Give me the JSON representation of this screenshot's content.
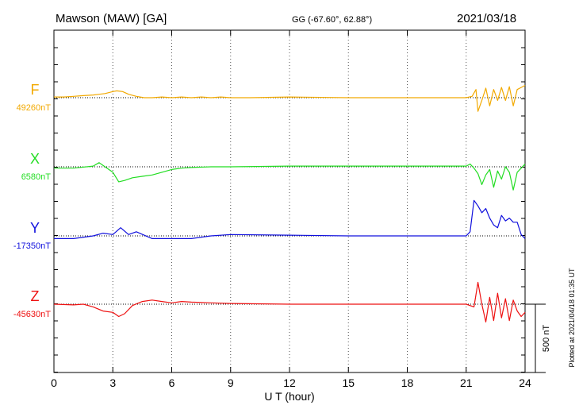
{
  "header": {
    "station": "Mawson (MAW)  [GA]",
    "coords": "GG (-67.60°,  62.88°)",
    "date": "2021/03/18"
  },
  "footer": {
    "plotted": "Plotted at 2021/04/18 01:35 UT"
  },
  "scale_bar": {
    "label": "500 nT",
    "value": 500
  },
  "chart_data": {
    "type": "line",
    "title": "Mawson (MAW)  [GA]",
    "xlabel": "U T (hour)",
    "xlim": [
      0,
      24
    ],
    "xticks": [
      0,
      3,
      6,
      9,
      12,
      15,
      18,
      21,
      24
    ],
    "xtick_labels": [
      "0",
      "3",
      "6",
      "9",
      "12",
      "15",
      "18",
      "21",
      "24"
    ],
    "grid": "vertical dotted lines every 3 hours",
    "y_scale_nT_per_division": 500,
    "series": [
      {
        "name": "F",
        "baseline_label": "49260nT",
        "color": "#f2a900",
        "x": [
          0,
          0.5,
          1,
          1.5,
          2,
          2.3,
          2.6,
          3,
          3.2,
          3.5,
          3.8,
          4.2,
          4.6,
          5,
          5.5,
          6,
          6.5,
          7,
          7.5,
          8,
          8.5,
          9,
          10,
          12,
          15,
          18,
          20,
          21,
          21.3,
          21.5,
          21.6,
          21.8,
          22,
          22.2,
          22.4,
          22.6,
          22.8,
          23,
          23.2,
          23.4,
          23.6,
          23.8,
          24
        ],
        "values": [
          5,
          5,
          10,
          15,
          20,
          25,
          30,
          45,
          50,
          45,
          25,
          10,
          0,
          0,
          5,
          0,
          5,
          0,
          5,
          0,
          5,
          0,
          0,
          5,
          0,
          0,
          0,
          0,
          10,
          60,
          -100,
          -20,
          70,
          -60,
          60,
          -20,
          75,
          -20,
          80,
          -60,
          60,
          75,
          90
        ]
      },
      {
        "name": "X",
        "baseline_label": "6580nT",
        "color": "#22dd22",
        "x": [
          0,
          1,
          2,
          2.3,
          2.6,
          3,
          3.3,
          3.6,
          4,
          4.5,
          5,
          5.5,
          6,
          6.5,
          7,
          8,
          9,
          12,
          15,
          18,
          21,
          21.2,
          21.4,
          21.6,
          21.8,
          22,
          22.2,
          22.4,
          22.6,
          22.8,
          23,
          23.2,
          23.4,
          23.6,
          23.8,
          24
        ],
        "values": [
          -10,
          -10,
          5,
          30,
          0,
          -40,
          -110,
          -100,
          -80,
          -70,
          -60,
          -40,
          -20,
          -10,
          -5,
          0,
          0,
          5,
          5,
          5,
          5,
          20,
          -10,
          -50,
          -130,
          -60,
          -20,
          -150,
          -30,
          -90,
          0,
          -40,
          -170,
          -40,
          -10,
          20
        ]
      },
      {
        "name": "Y",
        "baseline_label": "-17350nT",
        "color": "#1010dd",
        "x": [
          0,
          1,
          2,
          2.5,
          3,
          3.4,
          3.8,
          4.2,
          5,
          6,
          7,
          8,
          9,
          12,
          15,
          18,
          21,
          21.2,
          21.4,
          21.6,
          21.8,
          22,
          22.2,
          22.4,
          22.6,
          22.8,
          23,
          23.2,
          23.4,
          23.6,
          23.8,
          24
        ],
        "values": [
          -20,
          -20,
          0,
          20,
          10,
          60,
          10,
          30,
          -20,
          -20,
          -20,
          0,
          10,
          5,
          0,
          0,
          0,
          30,
          260,
          220,
          170,
          200,
          130,
          80,
          60,
          150,
          110,
          130,
          100,
          100,
          10,
          -20
        ]
      },
      {
        "name": "Z",
        "baseline_label": "-45630nT",
        "color": "#ee1111",
        "x": [
          0,
          1,
          1.5,
          2,
          2.5,
          3,
          3.3,
          3.6,
          4,
          4.5,
          5,
          5.5,
          6,
          6.5,
          7,
          8,
          9,
          12,
          15,
          18,
          21,
          21.4,
          21.6,
          21.8,
          22,
          22.2,
          22.4,
          22.6,
          22.8,
          23,
          23.2,
          23.4,
          23.6,
          23.8,
          24
        ],
        "values": [
          0,
          -5,
          0,
          -20,
          -50,
          -60,
          -90,
          -70,
          -10,
          20,
          30,
          20,
          10,
          20,
          15,
          10,
          5,
          0,
          0,
          0,
          0,
          -20,
          160,
          0,
          -130,
          50,
          -120,
          80,
          -100,
          40,
          -120,
          30,
          -50,
          -90,
          -60
        ]
      }
    ]
  }
}
